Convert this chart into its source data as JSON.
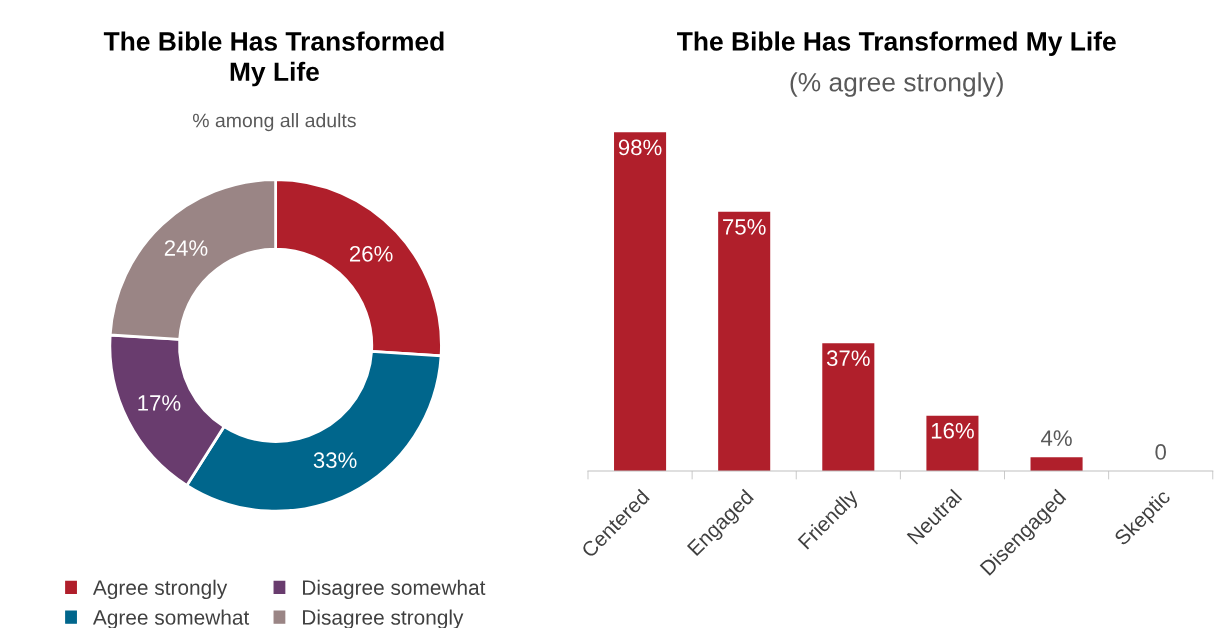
{
  "chart_data": [
    {
      "type": "donut",
      "title": "The Bible Has Transformed\nMy Life",
      "subtitle": "% among all adults",
      "categories": [
        "Agree strongly",
        "Agree somewhat",
        "Disagree somewhat",
        "Disagree strongly"
      ],
      "values": [
        26,
        33,
        17,
        24
      ],
      "colors": [
        "#b01f2b",
        "#00668c",
        "#693c6e",
        "#9a8585"
      ],
      "value_labels": [
        "26%",
        "33%",
        "17%",
        "24%"
      ],
      "legend": "bottom"
    },
    {
      "type": "bar",
      "title": "The Bible Has Transformed My Life",
      "subtitle": "(% agree strongly)",
      "categories": [
        "Centered",
        "Engaged",
        "Friendly",
        "Neutral",
        "Disengaged",
        "Skeptic"
      ],
      "values": [
        98,
        75,
        37,
        16,
        4,
        0
      ],
      "color": "#b01f2b",
      "value_labels": [
        "98%",
        "75%",
        "37%",
        "16%",
        "4%",
        "0"
      ]
    }
  ]
}
